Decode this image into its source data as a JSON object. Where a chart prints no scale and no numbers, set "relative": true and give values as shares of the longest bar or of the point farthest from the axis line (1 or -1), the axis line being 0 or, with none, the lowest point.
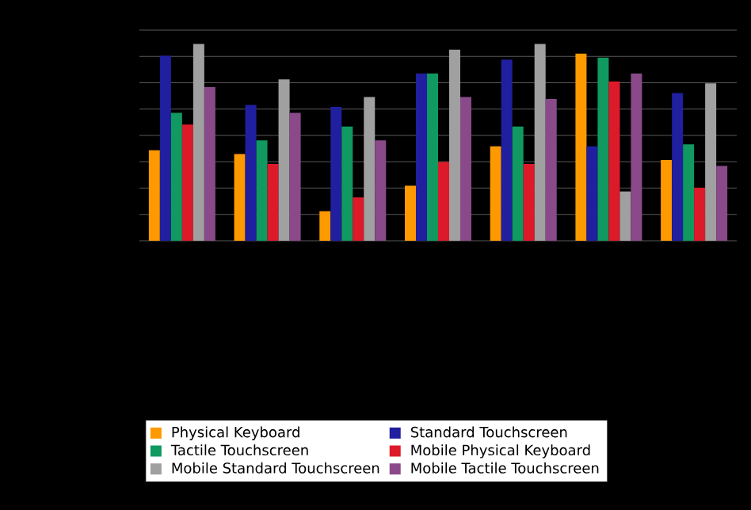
{
  "chart_data": {
    "type": "bar",
    "relative": true,
    "grid": "y",
    "legend": "bottom",
    "categories": [
      null,
      null,
      null,
      null,
      null,
      null,
      null
    ],
    "series": [
      {
        "name": "Physical Keyboard",
        "color": "#ff9900",
        "values": [
          0.46,
          0.44,
          0.15,
          0.28,
          0.48,
          0.95,
          0.41
        ]
      },
      {
        "name": "Standard Touchscreen",
        "color": "#1f1f9f",
        "values": [
          0.94,
          0.69,
          0.68,
          0.85,
          0.92,
          0.48,
          0.75
        ]
      },
      {
        "name": "Tactile Touchscreen",
        "color": "#109960",
        "values": [
          0.65,
          0.51,
          0.58,
          0.85,
          0.58,
          0.93,
          0.49
        ]
      },
      {
        "name": "Mobile Physical Keyboard",
        "color": "#dd1a2a",
        "values": [
          0.59,
          0.39,
          0.22,
          0.4,
          0.39,
          0.81,
          0.27
        ]
      },
      {
        "name": "Mobile Standard Touchscreen",
        "color": "#a0a0a0",
        "values": [
          1,
          0.82,
          0.73,
          0.97,
          1,
          0.25,
          0.8
        ]
      },
      {
        "name": "Mobile Tactile Touchscreen",
        "color": "#8a4a8a",
        "values": [
          0.78,
          0.65,
          0.51,
          0.73,
          0.72,
          0.85,
          0.38
        ]
      }
    ]
  }
}
